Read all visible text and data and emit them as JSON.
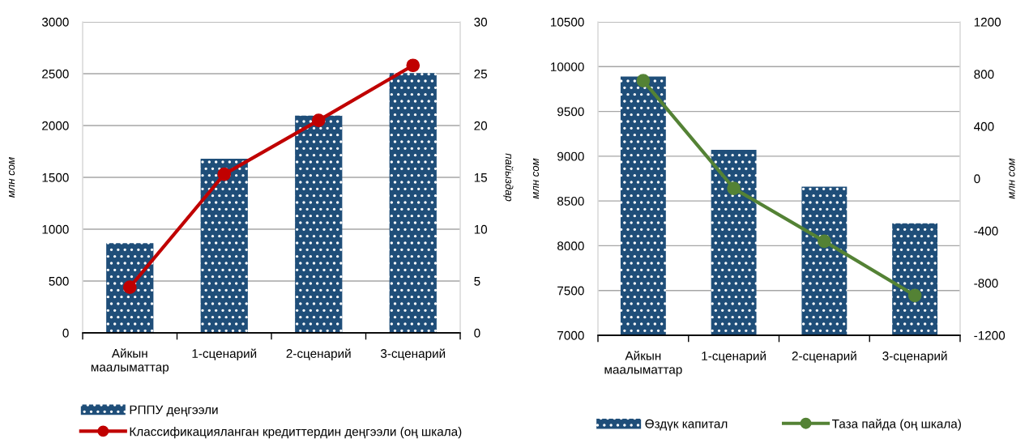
{
  "chart_data": [
    {
      "type": "bar",
      "categories": [
        "Айкын\nмаалыматтар",
        "1-сценарий",
        "2-сценарий",
        "3-сценарий"
      ],
      "series": [
        {
          "name": "РППУ деңгээли",
          "color": "#1f4e79",
          "values": [
            865,
            1680,
            2095,
            2505
          ]
        },
        {
          "name": "Классификацияланган кредиттердин деңгээли (оң шкала)",
          "type": "line",
          "axis": "y2",
          "color": "#c00000",
          "values": [
            4.4,
            15.3,
            20.5,
            25.8
          ]
        }
      ],
      "ylabel": "млн сом",
      "y2label": "пайыздар",
      "ylim": [
        0,
        3000
      ],
      "yticks": [
        0,
        500,
        1000,
        1500,
        2000,
        2500,
        3000
      ],
      "y2lim": [
        0,
        30
      ],
      "y2ticks": [
        0,
        5,
        10,
        15,
        20,
        25,
        30
      ],
      "grid": "y",
      "legend": "bottom",
      "marker": "circle"
    },
    {
      "type": "bar",
      "categories": [
        "Айкын\nмаалыматтар",
        "1-сценарий",
        "2-сценарий",
        "3-сценарий"
      ],
      "series": [
        {
          "name": "Өздүк капитал",
          "color": "#1f4e79",
          "values": [
            9890,
            9070,
            8660,
            8250
          ]
        },
        {
          "name": "Таза пайда (оң шкала)",
          "type": "line",
          "axis": "y2",
          "color": "#548235",
          "values": [
            750,
            -75,
            -480,
            -895
          ]
        }
      ],
      "ylabel": "млн сом",
      "y2label": "млн сом",
      "ylim": [
        7000,
        10500
      ],
      "yticks": [
        7000,
        7500,
        8000,
        8500,
        9000,
        9500,
        10000,
        10500
      ],
      "y2lim": [
        -1200,
        1200
      ],
      "y2ticks": [
        -1200,
        -800,
        -400,
        0,
        400,
        800,
        1200
      ],
      "grid": "y",
      "legend": "bottom",
      "marker": "circle"
    }
  ]
}
